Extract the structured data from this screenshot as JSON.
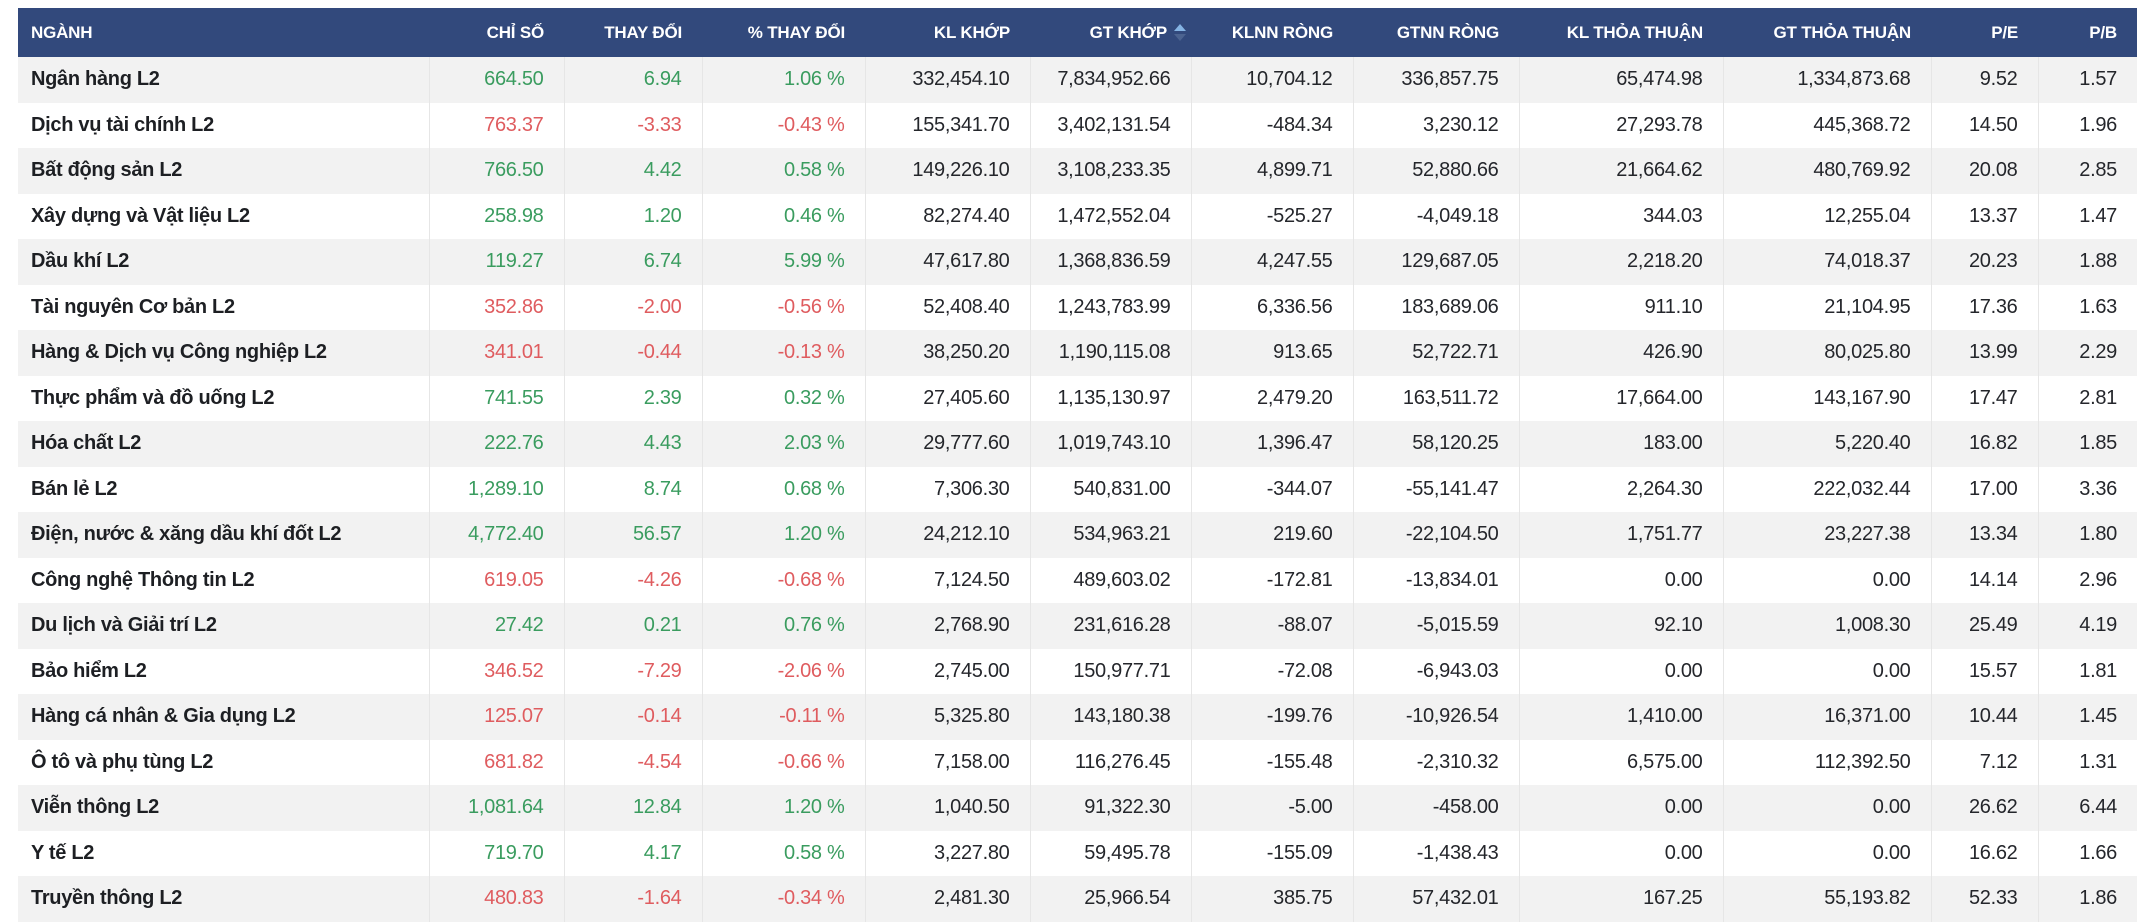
{
  "theme": {
    "header_bg": "#32497c",
    "header_text": "#ffffff",
    "text": "#24262b",
    "text_strong": "#1d1f23",
    "positive": "#3a9c5f",
    "negative": "#df5c5f",
    "row_bg": "#ffffff",
    "row_alt_bg": "#f2f2f2",
    "divider": "#e6e6e6",
    "sort_up": "#85b4e4",
    "sort_down": "#4c6390"
  },
  "table": {
    "columns": [
      {
        "id": "nganh",
        "label": "NGÀNH",
        "align": "left",
        "sorted": false
      },
      {
        "id": "chi-so",
        "label": "CHỈ SỐ",
        "align": "right",
        "sorted": false
      },
      {
        "id": "thay-doi",
        "label": "THAY ĐỔI",
        "align": "right",
        "sorted": false
      },
      {
        "id": "pct-thay-doi",
        "label": "% THAY ĐỔI",
        "align": "right",
        "sorted": false
      },
      {
        "id": "kl-khop",
        "label": "KL KHỚP",
        "align": "right",
        "sorted": false
      },
      {
        "id": "gt-khop",
        "label": "GT KHỚP",
        "align": "right",
        "sorted": true,
        "sort_state": "asc"
      },
      {
        "id": "klnn-rong",
        "label": "KLNN RÒNG",
        "align": "right",
        "sorted": false
      },
      {
        "id": "gtnn-rong",
        "label": "GTNN RÒNG",
        "align": "right",
        "sorted": false
      },
      {
        "id": "kl-thoa-thuan",
        "label": "KL THỎA THUẬN",
        "align": "right",
        "sorted": false
      },
      {
        "id": "gt-thoa-thuan",
        "label": "GT THỎA THUẬN",
        "align": "right",
        "sorted": false
      },
      {
        "id": "pe",
        "label": "P/E",
        "align": "right",
        "sorted": false
      },
      {
        "id": "pb",
        "label": "P/B",
        "align": "right",
        "sorted": false
      }
    ],
    "rows": [
      {
        "name": "Ngân hàng L2",
        "trend": "up",
        "values": [
          "664.50",
          "6.94",
          "1.06 %",
          "332,454.10",
          "7,834,952.66",
          "10,704.12",
          "336,857.75",
          "65,474.98",
          "1,334,873.68",
          "9.52",
          "1.57"
        ]
      },
      {
        "name": "Dịch vụ tài chính L2",
        "trend": "down",
        "values": [
          "763.37",
          "-3.33",
          "-0.43 %",
          "155,341.70",
          "3,402,131.54",
          "-484.34",
          "3,230.12",
          "27,293.78",
          "445,368.72",
          "14.50",
          "1.96"
        ]
      },
      {
        "name": "Bất động sản L2",
        "trend": "up",
        "values": [
          "766.50",
          "4.42",
          "0.58 %",
          "149,226.10",
          "3,108,233.35",
          "4,899.71",
          "52,880.66",
          "21,664.62",
          "480,769.92",
          "20.08",
          "2.85"
        ]
      },
      {
        "name": "Xây dựng và Vật liệu L2",
        "trend": "up",
        "values": [
          "258.98",
          "1.20",
          "0.46 %",
          "82,274.40",
          "1,472,552.04",
          "-525.27",
          "-4,049.18",
          "344.03",
          "12,255.04",
          "13.37",
          "1.47"
        ]
      },
      {
        "name": "Dầu khí L2",
        "trend": "up",
        "values": [
          "119.27",
          "6.74",
          "5.99 %",
          "47,617.80",
          "1,368,836.59",
          "4,247.55",
          "129,687.05",
          "2,218.20",
          "74,018.37",
          "20.23",
          "1.88"
        ]
      },
      {
        "name": "Tài nguyên Cơ bản L2",
        "trend": "down",
        "values": [
          "352.86",
          "-2.00",
          "-0.56 %",
          "52,408.40",
          "1,243,783.99",
          "6,336.56",
          "183,689.06",
          "911.10",
          "21,104.95",
          "17.36",
          "1.63"
        ]
      },
      {
        "name": "Hàng & Dịch vụ Công nghiệp L2",
        "trend": "down",
        "values": [
          "341.01",
          "-0.44",
          "-0.13 %",
          "38,250.20",
          "1,190,115.08",
          "913.65",
          "52,722.71",
          "426.90",
          "80,025.80",
          "13.99",
          "2.29"
        ]
      },
      {
        "name": "Thực phẩm và đồ uống L2",
        "trend": "up",
        "values": [
          "741.55",
          "2.39",
          "0.32 %",
          "27,405.60",
          "1,135,130.97",
          "2,479.20",
          "163,511.72",
          "17,664.00",
          "143,167.90",
          "17.47",
          "2.81"
        ]
      },
      {
        "name": "Hóa chất L2",
        "trend": "up",
        "values": [
          "222.76",
          "4.43",
          "2.03 %",
          "29,777.60",
          "1,019,743.10",
          "1,396.47",
          "58,120.25",
          "183.00",
          "5,220.40",
          "16.82",
          "1.85"
        ]
      },
      {
        "name": "Bán lẻ L2",
        "trend": "up",
        "values": [
          "1,289.10",
          "8.74",
          "0.68 %",
          "7,306.30",
          "540,831.00",
          "-344.07",
          "-55,141.47",
          "2,264.30",
          "222,032.44",
          "17.00",
          "3.36"
        ]
      },
      {
        "name": "Điện, nước & xăng dầu khí đốt L2",
        "trend": "up",
        "values": [
          "4,772.40",
          "56.57",
          "1.20 %",
          "24,212.10",
          "534,963.21",
          "219.60",
          "-22,104.50",
          "1,751.77",
          "23,227.38",
          "13.34",
          "1.80"
        ]
      },
      {
        "name": "Công nghệ Thông tin L2",
        "trend": "down",
        "values": [
          "619.05",
          "-4.26",
          "-0.68 %",
          "7,124.50",
          "489,603.02",
          "-172.81",
          "-13,834.01",
          "0.00",
          "0.00",
          "14.14",
          "2.96"
        ]
      },
      {
        "name": "Du lịch và Giải trí L2",
        "trend": "up",
        "values": [
          "27.42",
          "0.21",
          "0.76 %",
          "2,768.90",
          "231,616.28",
          "-88.07",
          "-5,015.59",
          "92.10",
          "1,008.30",
          "25.49",
          "4.19"
        ]
      },
      {
        "name": "Bảo hiểm L2",
        "trend": "down",
        "values": [
          "346.52",
          "-7.29",
          "-2.06 %",
          "2,745.00",
          "150,977.71",
          "-72.08",
          "-6,943.03",
          "0.00",
          "0.00",
          "15.57",
          "1.81"
        ]
      },
      {
        "name": "Hàng cá nhân & Gia dụng L2",
        "trend": "down",
        "values": [
          "125.07",
          "-0.14",
          "-0.11 %",
          "5,325.80",
          "143,180.38",
          "-199.76",
          "-10,926.54",
          "1,410.00",
          "16,371.00",
          "10.44",
          "1.45"
        ]
      },
      {
        "name": "Ô tô và phụ tùng L2",
        "trend": "down",
        "values": [
          "681.82",
          "-4.54",
          "-0.66 %",
          "7,158.00",
          "116,276.45",
          "-155.48",
          "-2,310.32",
          "6,575.00",
          "112,392.50",
          "7.12",
          "1.31"
        ]
      },
      {
        "name": "Viễn thông L2",
        "trend": "up",
        "values": [
          "1,081.64",
          "12.84",
          "1.20 %",
          "1,040.50",
          "91,322.30",
          "-5.00",
          "-458.00",
          "0.00",
          "0.00",
          "26.62",
          "6.44"
        ]
      },
      {
        "name": "Y tế L2",
        "trend": "up",
        "values": [
          "719.70",
          "4.17",
          "0.58 %",
          "3,227.80",
          "59,495.78",
          "-155.09",
          "-1,438.43",
          "0.00",
          "0.00",
          "16.62",
          "1.66"
        ]
      },
      {
        "name": "Truyền thông L2",
        "trend": "down",
        "values": [
          "480.83",
          "-1.64",
          "-0.34 %",
          "2,481.30",
          "25,966.54",
          "385.75",
          "57,432.01",
          "167.25",
          "55,193.82",
          "52.33",
          "1.86"
        ]
      }
    ]
  }
}
